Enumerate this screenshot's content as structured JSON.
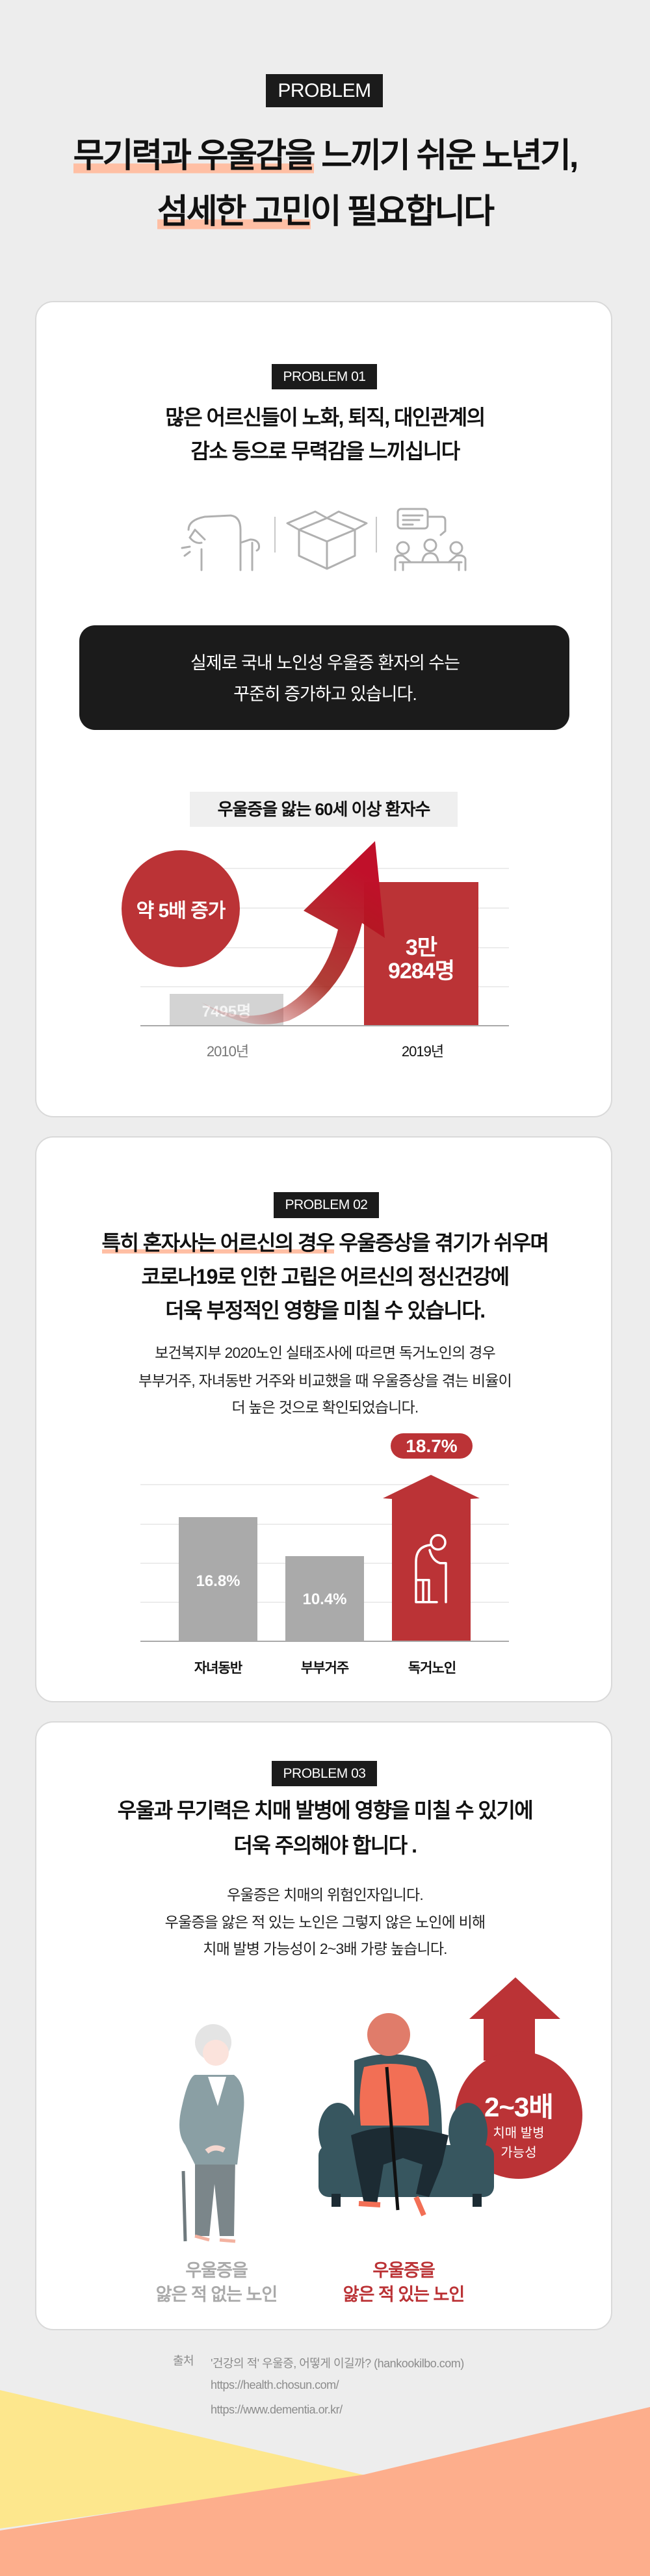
{
  "header": {
    "badge": "PROBLEM",
    "title_line1_highlight": "무기력과 우울감을",
    "title_line1_rest": " 느끼기 쉬운 노년기,",
    "title_line2_highlight": "섬세한 고민",
    "title_line2_rest": "이 필요합니다"
  },
  "problem1": {
    "badge": "PROBLEM 01",
    "heading_line1": "많은 어르신들이 노화, 퇴직, 대인관계의",
    "heading_line2": "감소 등으로 무력감을 느끼십니다",
    "icons": [
      "back-pain-elder-icon",
      "empty-box-icon",
      "conversation-group-icon"
    ],
    "callout_line1": "실제로 국내 노인성 우울증 환자의 수는",
    "callout_line2": "꾸준히 증가하고 있습니다.",
    "chart_data": {
      "type": "bar",
      "title": "우울증을 앓는 60세 이상 환자수",
      "categories": [
        "2010년",
        "2019년"
      ],
      "values": [
        7495,
        39284
      ],
      "value_labels": [
        "7495명",
        "3만\n9284명"
      ],
      "annotation": "약 5배 증가",
      "grid": true,
      "colors": [
        "#d3d3d3",
        "#bb3336"
      ]
    }
  },
  "problem2": {
    "badge": "PROBLEM 02",
    "heading_line1_highlight": "특히 혼자사는 어르신의 경우",
    "heading_line1_rest": " 우울증상을 겪기가 쉬우며",
    "heading_line2": "코로나19로 인한 고립은 어르신의 정신건강에",
    "heading_line3": "더욱 부정적인 영향을 미칠 수 있습니다.",
    "para_line1": "보건복지부 2020노인 실태조사에 따르면 독거노인의 경우",
    "para_line2": "부부거주, 자녀동반 거주와 비교했을 때 우울증상을 겪는 비율이",
    "para_line3": "더 높은 것으로 확인되었습니다.",
    "chart_data": {
      "type": "bar",
      "categories": [
        "자녀동반",
        "부부거주",
        "독거노인"
      ],
      "values": [
        16.8,
        10.4,
        18.7
      ],
      "value_labels": [
        "16.8%",
        "10.4%",
        "18.7%"
      ],
      "grid": true,
      "colors": [
        "#aaaaaa",
        "#aaaaaa",
        "#bb3336"
      ]
    }
  },
  "problem3": {
    "badge": "PROBLEM 03",
    "heading_line1": "우울과 무기력은 치매 발병에 영향을 미칠 수 있기에",
    "heading_line2": "더욱 주의해야 합니다 .",
    "para_line1": "우울증은 치매의 위험인자입니다.",
    "para_line2": "우울증을 앓은 적 있는 노인은 그렇지 않은 노인에 비해",
    "para_line3": "치매 발병 가능성이 2~3배 가량 높습니다.",
    "risk_value": "2~3배",
    "risk_label_line1": "치매 발병",
    "risk_label_line2": "가능성",
    "left_label_line1": "우울증을",
    "left_label_line2": "앓은 적 없는 노인",
    "right_label_line1": "우울증을",
    "right_label_line2": "앓은 적 있는 노인"
  },
  "sources": {
    "label": "출처",
    "items": [
      "'건강의 적' 우울증, 어떻게 이길까? (hankookilbo.com)",
      "https://health.chosun.com/",
      "https://www.dementia.or.kr/"
    ]
  },
  "colors": {
    "accent_red": "#bb3336",
    "highlight": "#ffbfa4",
    "dark": "#1b1b1b",
    "background": "#ededed",
    "wave_yellow": "#fde78d",
    "wave_orange": "#fdae8c"
  }
}
